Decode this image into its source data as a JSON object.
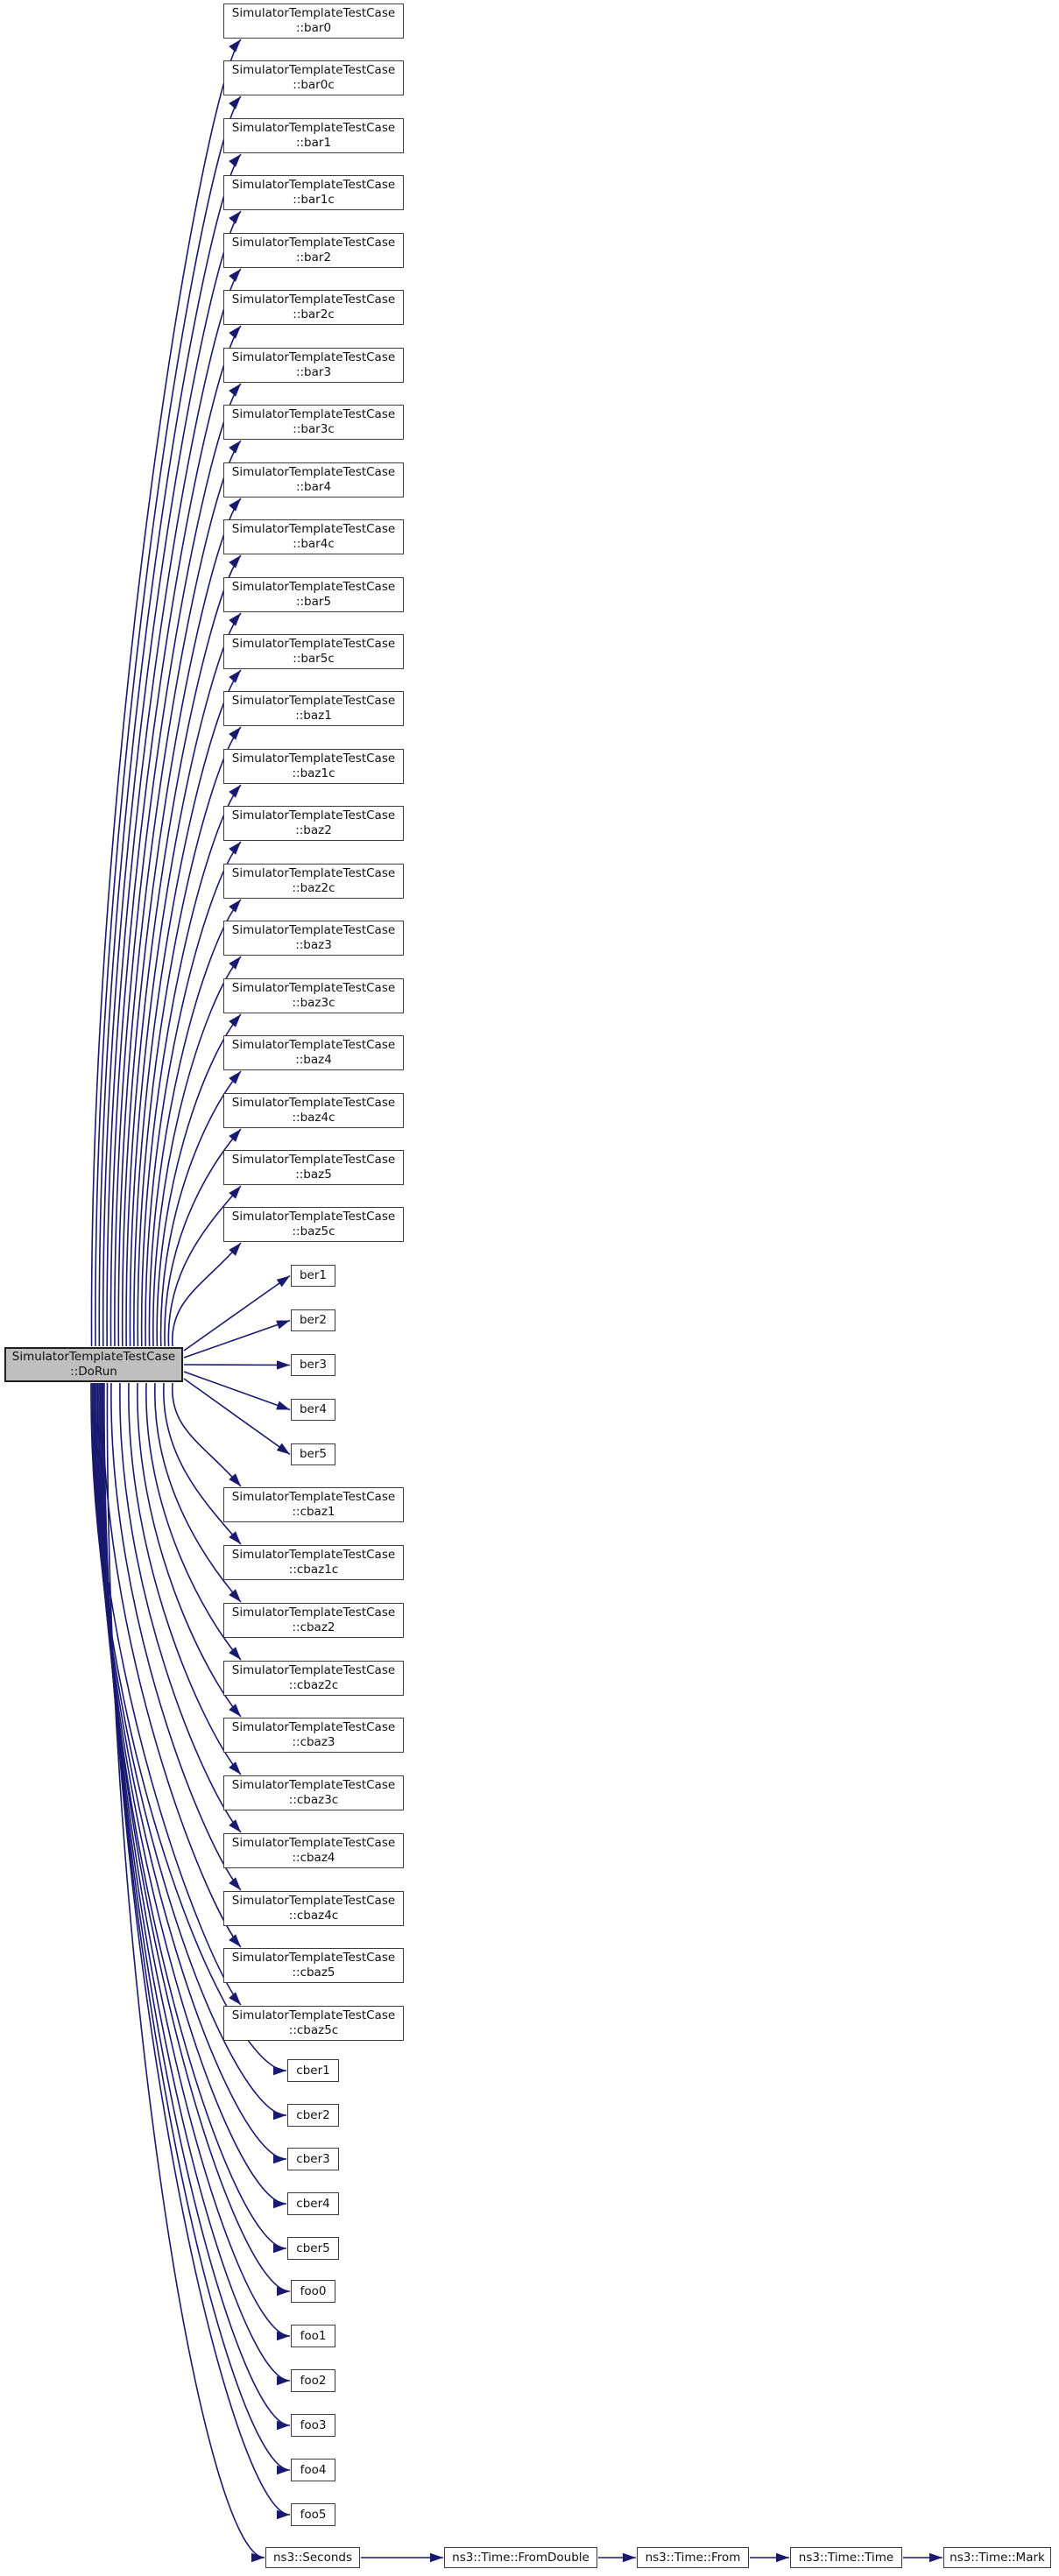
{
  "colors": {
    "edge": "#191970",
    "node_border": "#3d3d3d",
    "node_fill": "#ffffff",
    "main_node_fill": "#bfbfbf",
    "text": "#111111",
    "background": "#ffffff"
  },
  "graph": {
    "class_name": "SimulatorTemplateTestCase",
    "caller": {
      "line1": "SimulatorTemplateTestCase",
      "line2": "::DoRun"
    },
    "class_callees_upper": [
      "::bar0",
      "::bar0c",
      "::bar1",
      "::bar1c",
      "::bar2",
      "::bar2c",
      "::bar3",
      "::bar3c",
      "::bar4",
      "::bar4c",
      "::bar5",
      "::bar5c",
      "::baz1",
      "::baz1c",
      "::baz2",
      "::baz2c",
      "::baz3",
      "::baz3c",
      "::baz4",
      "::baz4c",
      "::baz5",
      "::baz5c"
    ],
    "plain_callees_mid": [
      "ber1",
      "ber2",
      "ber3",
      "ber4",
      "ber5"
    ],
    "class_callees_lower": [
      "::cbaz1",
      "::cbaz1c",
      "::cbaz2",
      "::cbaz2c",
      "::cbaz3",
      "::cbaz3c",
      "::cbaz4",
      "::cbaz4c",
      "::cbaz5",
      "::cbaz5c"
    ],
    "plain_callees_lower": [
      "cber1",
      "cber2",
      "cber3",
      "cber4",
      "cber5",
      "foo0",
      "foo1",
      "foo2",
      "foo3",
      "foo4",
      "foo5"
    ],
    "time_chain": [
      "ns3::Seconds",
      "ns3::Time::FromDouble",
      "ns3::Time::From",
      "ns3::Time::Time",
      "ns3::Time::Mark"
    ]
  }
}
